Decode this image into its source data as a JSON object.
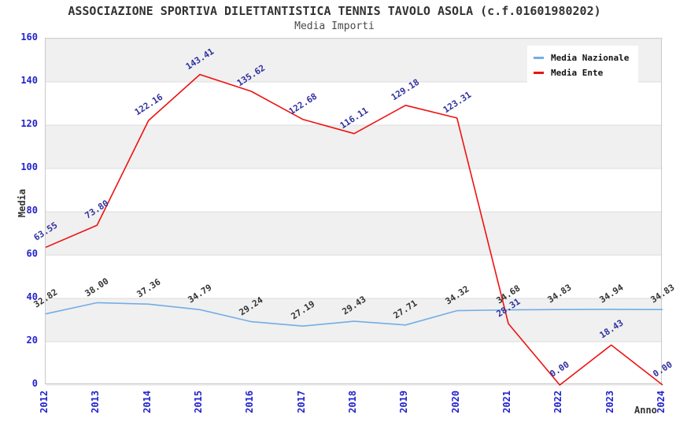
{
  "title": "ASSOCIAZIONE SPORTIVA DILETTANTISTICA TENNIS TAVOLO ASOLA (c.f.01601980202)",
  "subtitle": "Media Importi",
  "chart_data": {
    "type": "line",
    "categories": [
      "2012",
      "2013",
      "2014",
      "2015",
      "2016",
      "2017",
      "2018",
      "2019",
      "2020",
      "2021",
      "2022",
      "2023",
      "2024"
    ],
    "series": [
      {
        "name": "Media Nazionale",
        "color": "#74ade5",
        "label_color": "#333333",
        "values": [
          32.82,
          38.0,
          37.36,
          34.79,
          29.24,
          27.19,
          29.43,
          27.71,
          34.32,
          34.68,
          34.83,
          34.94,
          34.83
        ],
        "labels": [
          "32.82",
          "38.00",
          "37.36",
          "34.79",
          "29.24",
          "27.19",
          "29.43",
          "27.71",
          "34.32",
          "34.68",
          "34.83",
          "34.94",
          "34.83"
        ]
      },
      {
        "name": "Media Ente",
        "color": "#ee1111",
        "label_color": "#3030a0",
        "values": [
          63.55,
          73.8,
          122.16,
          143.41,
          135.62,
          122.68,
          116.11,
          129.18,
          123.31,
          28.31,
          0.0,
          18.43,
          0.0
        ],
        "labels": [
          "63.55",
          "73.80",
          "122.16",
          "143.41",
          "135.62",
          "122.68",
          "116.11",
          "129.18",
          "123.31",
          "28.31",
          "0.00",
          "18.43",
          "0.00"
        ]
      }
    ],
    "xlabel": "Anno",
    "ylabel": "Media",
    "ylim": [
      0,
      160
    ],
    "y_ticks": [
      0,
      20,
      40,
      60,
      80,
      100,
      120,
      140,
      160
    ],
    "grid": true,
    "band_color": "#f0f0f0",
    "gridline_color": "#dcdcdc",
    "tick_color": "#2323cc",
    "legend_position": "top-right"
  }
}
